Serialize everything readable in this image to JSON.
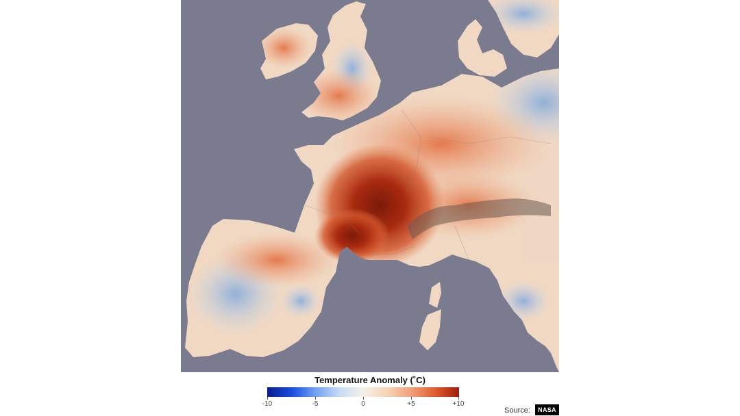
{
  "map": {
    "colors": {
      "sea": "#7a7b8f",
      "land_base": "#f0d8c4",
      "hot": "#dd5a2a",
      "very_hot": "#8e1e0c",
      "cool": "#7fa8dc",
      "mountain": "#6a5a50"
    }
  },
  "legend": {
    "title": "Temperature Anomaly (˚C)",
    "ticks": [
      "-10",
      "-5",
      "0",
      "+5",
      "+10"
    ],
    "gradient_colors": [
      "#0a1e8c",
      "#1a4de0",
      "#6fa2f0",
      "#c9dcf5",
      "#f5f1ea",
      "#f7d3b4",
      "#f2a07a",
      "#de5a2c",
      "#9e1c0c"
    ]
  },
  "credit": {
    "label": "Source:",
    "badge": "NASA"
  }
}
